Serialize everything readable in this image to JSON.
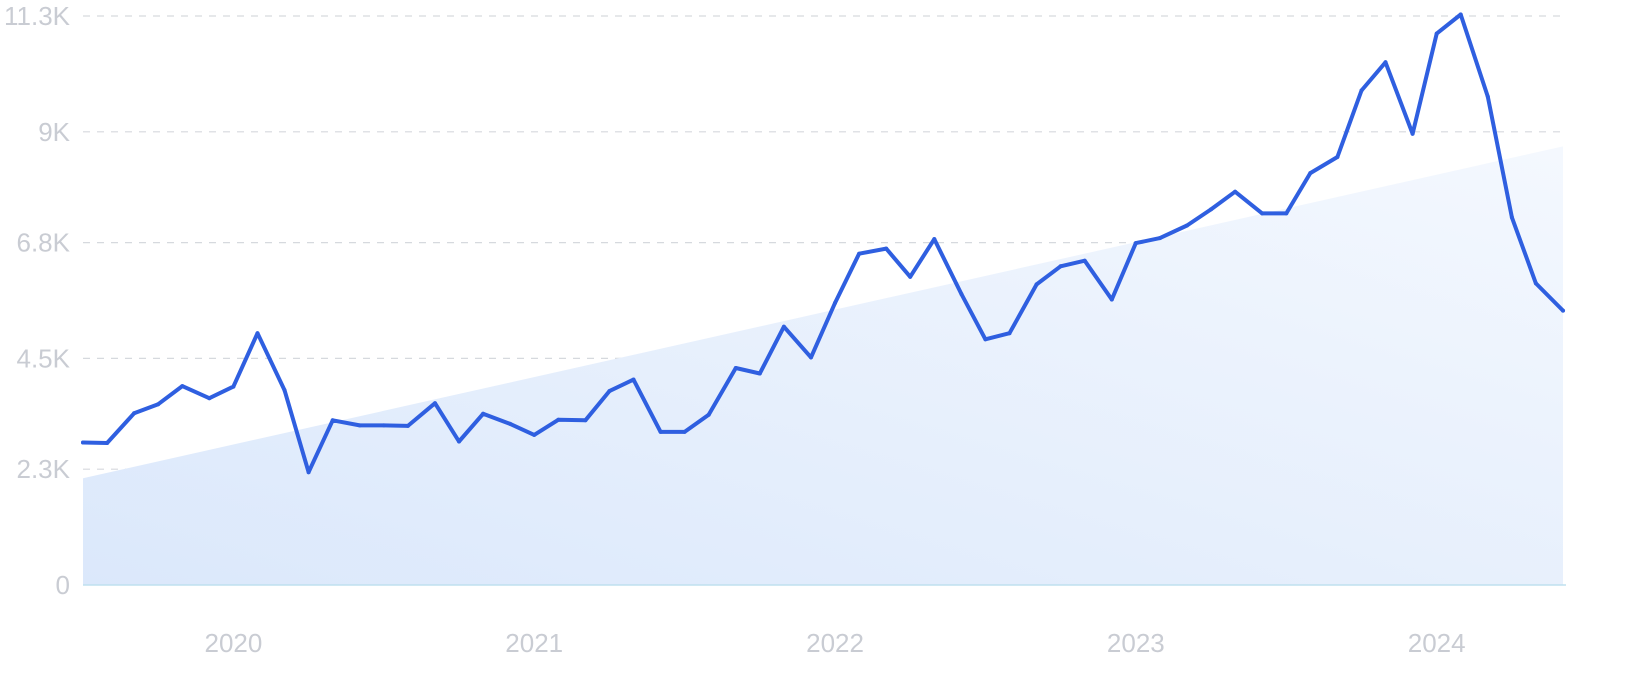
{
  "chart_data": {
    "type": "line",
    "title": "",
    "xlabel": "",
    "ylabel": "",
    "grid": true,
    "ylim": [
      0,
      11300
    ],
    "y_ticks": [
      {
        "value": 0,
        "label": "0"
      },
      {
        "value": 2300,
        "label": "2.3K"
      },
      {
        "value": 4500,
        "label": "4.5K"
      },
      {
        "value": 6800,
        "label": "6.8K"
      },
      {
        "value": 9000,
        "label": "9K"
      },
      {
        "value": 11300,
        "label": "11.3K"
      }
    ],
    "xlim": [
      2019.5,
      2024.42
    ],
    "x_ticks": [
      {
        "value": 2020,
        "label": "2020"
      },
      {
        "value": 2021,
        "label": "2021"
      },
      {
        "value": 2022,
        "label": "2022"
      },
      {
        "value": 2023,
        "label": "2023"
      },
      {
        "value": 2024,
        "label": "2024"
      }
    ],
    "series": [
      {
        "values": [
          [
            2019.5,
            2830
          ],
          [
            2019.58,
            2820
          ],
          [
            2019.67,
            3410
          ],
          [
            2019.75,
            3590
          ],
          [
            2019.83,
            3950
          ],
          [
            2019.92,
            3710
          ],
          [
            2020.0,
            3940
          ],
          [
            2020.08,
            5000
          ],
          [
            2020.17,
            3870
          ],
          [
            2020.25,
            2240
          ],
          [
            2020.33,
            3270
          ],
          [
            2020.42,
            3170
          ],
          [
            2020.5,
            3170
          ],
          [
            2020.58,
            3160
          ],
          [
            2020.67,
            3610
          ],
          [
            2020.75,
            2850
          ],
          [
            2020.83,
            3400
          ],
          [
            2020.92,
            3200
          ],
          [
            2021.0,
            2980
          ],
          [
            2021.08,
            3280
          ],
          [
            2021.17,
            3270
          ],
          [
            2021.25,
            3850
          ],
          [
            2021.33,
            4080
          ],
          [
            2021.42,
            3040
          ],
          [
            2021.5,
            3040
          ],
          [
            2021.58,
            3380
          ],
          [
            2021.67,
            4310
          ],
          [
            2021.75,
            4200
          ],
          [
            2021.83,
            5130
          ],
          [
            2021.92,
            4520
          ],
          [
            2022.0,
            5600
          ],
          [
            2022.08,
            6580
          ],
          [
            2022.17,
            6680
          ],
          [
            2022.25,
            6120
          ],
          [
            2022.33,
            6870
          ],
          [
            2022.42,
            5780
          ],
          [
            2022.5,
            4880
          ],
          [
            2022.58,
            5000
          ],
          [
            2022.67,
            5970
          ],
          [
            2022.75,
            6330
          ],
          [
            2022.83,
            6440
          ],
          [
            2022.92,
            5670
          ],
          [
            2023.0,
            6790
          ],
          [
            2023.08,
            6890
          ],
          [
            2023.17,
            7140
          ],
          [
            2023.25,
            7460
          ],
          [
            2023.33,
            7810
          ],
          [
            2023.42,
            7380
          ],
          [
            2023.5,
            7380
          ],
          [
            2023.58,
            8180
          ],
          [
            2023.67,
            8500
          ],
          [
            2023.75,
            9820
          ],
          [
            2023.83,
            10380
          ],
          [
            2023.92,
            8960
          ],
          [
            2024.0,
            10950
          ],
          [
            2024.08,
            11330
          ],
          [
            2024.17,
            9700
          ],
          [
            2024.25,
            7300
          ],
          [
            2024.33,
            5990
          ],
          [
            2024.42,
            5450
          ]
        ]
      }
    ],
    "trend": {
      "start": [
        2019.5,
        2120
      ],
      "end": [
        2024.42,
        8710
      ]
    }
  },
  "colors": {
    "line": "#2f5fe0",
    "fill_light": "#dbe8fb",
    "fill_end": "#f4f8fe",
    "grid": "#d6d9de",
    "tick_text": "#c9ccd3",
    "baseline": "#bfe0ef"
  }
}
